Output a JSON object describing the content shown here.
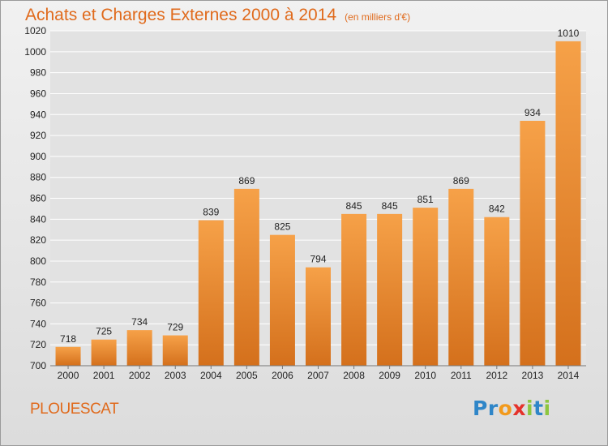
{
  "chart_data": {
    "type": "bar",
    "title": "Achats et Charges Externes 2000 à 2014",
    "unit_note": "(en milliers d'€)",
    "categories": [
      "2000",
      "2001",
      "2002",
      "2003",
      "2004",
      "2005",
      "2006",
      "2007",
      "2008",
      "2009",
      "2010",
      "2011",
      "2012",
      "2013",
      "2014"
    ],
    "values": [
      718,
      725,
      734,
      729,
      839,
      869,
      825,
      794,
      845,
      845,
      851,
      869,
      842,
      934,
      1010
    ],
    "ylim": [
      700,
      1020
    ],
    "yticks": [
      700,
      720,
      740,
      760,
      780,
      800,
      820,
      840,
      860,
      880,
      900,
      920,
      940,
      960,
      980,
      1000,
      1020
    ],
    "grid": true,
    "xlabel": "",
    "ylabel": "",
    "bar_color": "#f0913a",
    "data_labels": true
  },
  "location": "PLOUESCAT",
  "brand": {
    "letters": [
      "P",
      "r",
      "o",
      "x",
      "i",
      "t",
      "i"
    ],
    "colors": [
      "#2f86c8",
      "#2f86c8",
      "#f29a1c",
      "#e5322b",
      "#8dc63f",
      "#2f86c8",
      "#8dc63f"
    ]
  },
  "colors": {
    "title": "#e06a1c",
    "axis_text": "#222222",
    "grid": "#ffffff"
  }
}
